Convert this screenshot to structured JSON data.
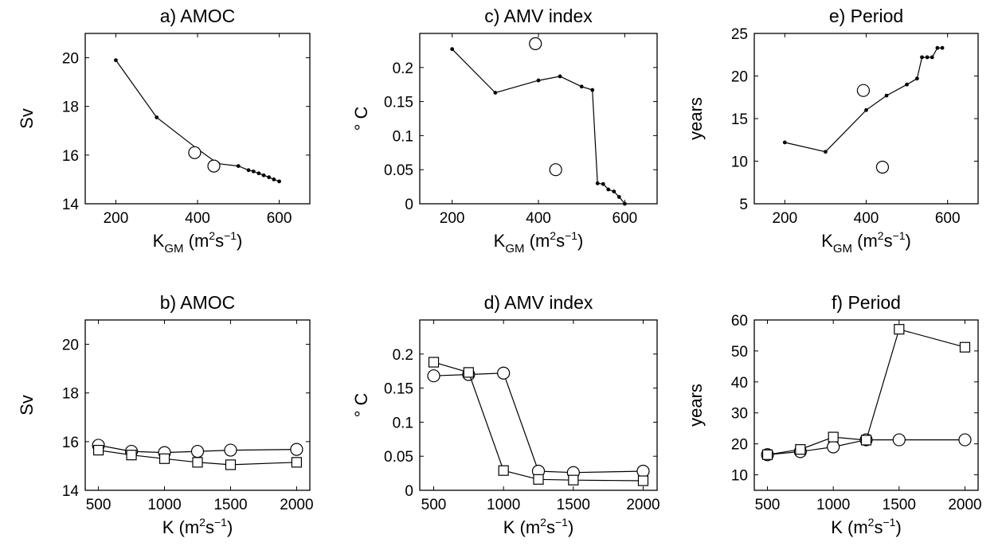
{
  "chart_data": [
    {
      "id": "a",
      "type": "line",
      "title": "a) AMOC",
      "ylabel": "Sv",
      "xlabel": {
        "base": "K",
        "sub": "GM",
        "unit_open": " (m",
        "sup1": "2",
        "mid": "s",
        "sup2": "−1",
        "unit_close": ")"
      },
      "xlim": [
        125,
        675
      ],
      "ylim": [
        14,
        21
      ],
      "xticks": [
        200,
        400,
        600
      ],
      "yticks": [
        14,
        16,
        18,
        20
      ],
      "series": [
        {
          "marker": "dot",
          "x": [
            200,
            300,
            400,
            450,
            500,
            525,
            537,
            550,
            562,
            575,
            587,
            600
          ],
          "y": [
            19.9,
            17.55,
            16.25,
            15.65,
            15.55,
            15.38,
            15.33,
            15.25,
            15.17,
            15.09,
            15.0,
            14.92
          ]
        },
        {
          "marker": "circle",
          "line": false,
          "x": [
            393,
            440
          ],
          "y": [
            16.1,
            15.55
          ]
        }
      ]
    },
    {
      "id": "c",
      "type": "line",
      "title": "c) AMV index",
      "ylabel": "° C",
      "xlabel": {
        "base": "K",
        "sub": "GM",
        "unit_open": " (m",
        "sup1": "2",
        "mid": "s",
        "sup2": "−1",
        "unit_close": ")"
      },
      "xlim": [
        125,
        675
      ],
      "ylim": [
        0,
        0.25
      ],
      "xticks": [
        200,
        400,
        600
      ],
      "yticks": [
        0,
        0.05,
        0.1,
        0.15,
        0.2
      ],
      "series": [
        {
          "marker": "dot",
          "x": [
            200,
            300,
            400,
            450,
            500,
            525,
            537,
            550,
            562,
            575,
            587,
            600
          ],
          "y": [
            0.227,
            0.163,
            0.181,
            0.187,
            0.172,
            0.167,
            0.03,
            0.029,
            0.021,
            0.018,
            0.01,
            0.0
          ]
        },
        {
          "marker": "circle",
          "line": false,
          "x": [
            393,
            440
          ],
          "y": [
            0.235,
            0.05
          ]
        }
      ]
    },
    {
      "id": "e",
      "type": "line",
      "title": "e) Period",
      "ylabel": "years",
      "xlabel": {
        "base": "K",
        "sub": "GM",
        "unit_open": " (m",
        "sup1": "2",
        "mid": "s",
        "sup2": "−1",
        "unit_close": ")"
      },
      "xlim": [
        125,
        675
      ],
      "ylim": [
        5,
        25
      ],
      "xticks": [
        200,
        400,
        600
      ],
      "yticks": [
        5,
        10,
        15,
        20,
        25
      ],
      "series": [
        {
          "marker": "dot",
          "x": [
            200,
            300,
            400,
            450,
            500,
            525,
            537,
            550,
            562,
            575,
            587
          ],
          "y": [
            12.2,
            11.1,
            16.0,
            17.7,
            19.0,
            19.7,
            22.2,
            22.2,
            22.2,
            23.3,
            23.3
          ]
        },
        {
          "marker": "circle",
          "line": false,
          "x": [
            393,
            440
          ],
          "y": [
            18.3,
            9.3
          ]
        }
      ]
    },
    {
      "id": "b",
      "type": "line",
      "title": "b) AMOC",
      "ylabel": "Sv",
      "xlabel": {
        "base": "K",
        "sub": "",
        "unit_open": " (m",
        "sup1": "2",
        "mid": "s",
        "sup2": "−1",
        "unit_close": ")"
      },
      "xlim": [
        400,
        2100
      ],
      "ylim": [
        14,
        21
      ],
      "xticks": [
        500,
        1000,
        1500,
        2000
      ],
      "yticks": [
        14,
        16,
        18,
        20
      ],
      "series": [
        {
          "marker": "circle",
          "x": [
            500,
            750,
            1000,
            1250,
            1500,
            2000
          ],
          "y": [
            15.85,
            15.6,
            15.55,
            15.6,
            15.65,
            15.68
          ]
        },
        {
          "marker": "square",
          "x": [
            500,
            750,
            1000,
            1250,
            1500,
            2000
          ],
          "y": [
            15.65,
            15.45,
            15.3,
            15.15,
            15.05,
            15.15
          ]
        }
      ]
    },
    {
      "id": "d",
      "type": "line",
      "title": "d) AMV index",
      "ylabel": "° C",
      "xlabel": {
        "base": "K",
        "sub": "",
        "unit_open": " (m",
        "sup1": "2",
        "mid": "s",
        "sup2": "−1",
        "unit_close": ")"
      },
      "xlim": [
        400,
        2100
      ],
      "ylim": [
        0,
        0.25
      ],
      "xticks": [
        500,
        1000,
        1500,
        2000
      ],
      "yticks": [
        0,
        0.05,
        0.1,
        0.15,
        0.2
      ],
      "series": [
        {
          "marker": "circle",
          "x": [
            500,
            750,
            1000,
            1250,
            1500,
            2000
          ],
          "y": [
            0.168,
            0.17,
            0.172,
            0.028,
            0.026,
            0.028
          ]
        },
        {
          "marker": "square",
          "x": [
            500,
            750,
            1000,
            1250,
            1500,
            2000
          ],
          "y": [
            0.188,
            0.173,
            0.029,
            0.016,
            0.015,
            0.014
          ]
        }
      ]
    },
    {
      "id": "f",
      "type": "line",
      "title": "f) Period",
      "ylabel": "years",
      "xlabel": {
        "base": "K",
        "sub": "",
        "unit_open": " (m",
        "sup1": "2",
        "mid": "s",
        "sup2": "−1",
        "unit_close": ")"
      },
      "xlim": [
        400,
        2100
      ],
      "ylim": [
        5,
        60
      ],
      "xticks": [
        500,
        1000,
        1500,
        2000
      ],
      "yticks": [
        10,
        20,
        30,
        40,
        50,
        60
      ],
      "series": [
        {
          "marker": "circle",
          "x": [
            500,
            750,
            1000,
            1250,
            1500,
            2000
          ],
          "y": [
            16.5,
            17.5,
            19.0,
            21.3,
            21.3,
            21.3
          ]
        },
        {
          "marker": "square",
          "x": [
            500,
            750,
            1000,
            1250,
            1500,
            2000
          ],
          "y": [
            16.5,
            18.2,
            22.2,
            21.2,
            57.0,
            51.2
          ]
        }
      ]
    }
  ]
}
